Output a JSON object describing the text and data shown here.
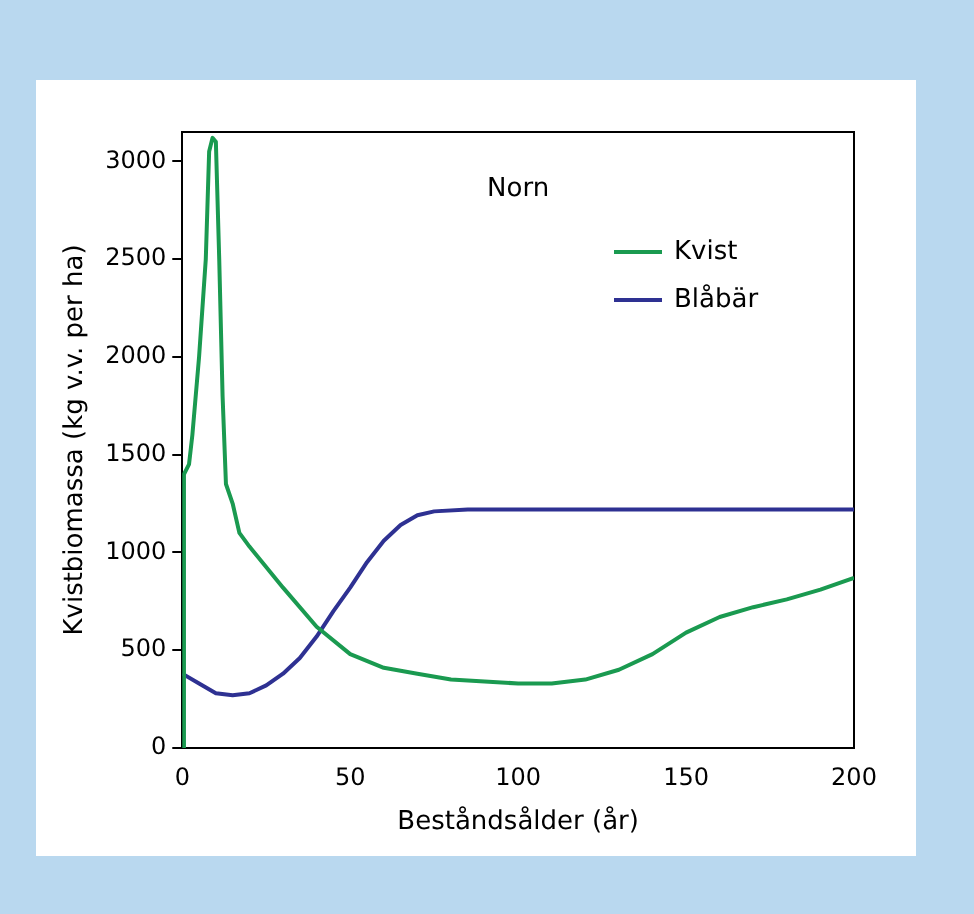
{
  "chart_data": {
    "type": "line",
    "title": "Norn",
    "xlabel": "Beståndsålder (år)",
    "ylabel": "Kvistbiomassa (kg v.v. per ha)",
    "xlim": [
      0,
      200
    ],
    "xticks": [
      0,
      50,
      100,
      150,
      200
    ],
    "ylim": [
      0,
      3150
    ],
    "yticks": [
      0,
      500,
      1000,
      1500,
      2000,
      2500,
      3000
    ],
    "grid": false,
    "legend": "top right",
    "marker": "none",
    "line_style": "solid",
    "series": [
      {
        "name": "Kvist",
        "color": "#1a9a50",
        "x": [
          0,
          0.5,
          2,
          3,
          5,
          7,
          8,
          9,
          10,
          11,
          12,
          13,
          15,
          17,
          20,
          30,
          40,
          50,
          60,
          70,
          80,
          90,
          100,
          110,
          120,
          130,
          140,
          150,
          160,
          170,
          180,
          190,
          200
        ],
        "values": [
          0,
          1400,
          1450,
          1600,
          2000,
          2500,
          3050,
          3120,
          3100,
          2500,
          1800,
          1350,
          1250,
          1100,
          1030,
          820,
          620,
          480,
          410,
          380,
          350,
          340,
          330,
          330,
          350,
          400,
          480,
          590,
          670,
          720,
          760,
          810,
          870
        ]
      },
      {
        "name": "Blåbär",
        "color": "#2e3192",
        "x": [
          0,
          5,
          10,
          15,
          20,
          25,
          30,
          35,
          40,
          45,
          50,
          55,
          60,
          65,
          70,
          75,
          85,
          200
        ],
        "values": [
          380,
          330,
          280,
          270,
          280,
          320,
          380,
          460,
          570,
          700,
          820,
          950,
          1060,
          1140,
          1190,
          1210,
          1220,
          1220
        ]
      }
    ]
  }
}
